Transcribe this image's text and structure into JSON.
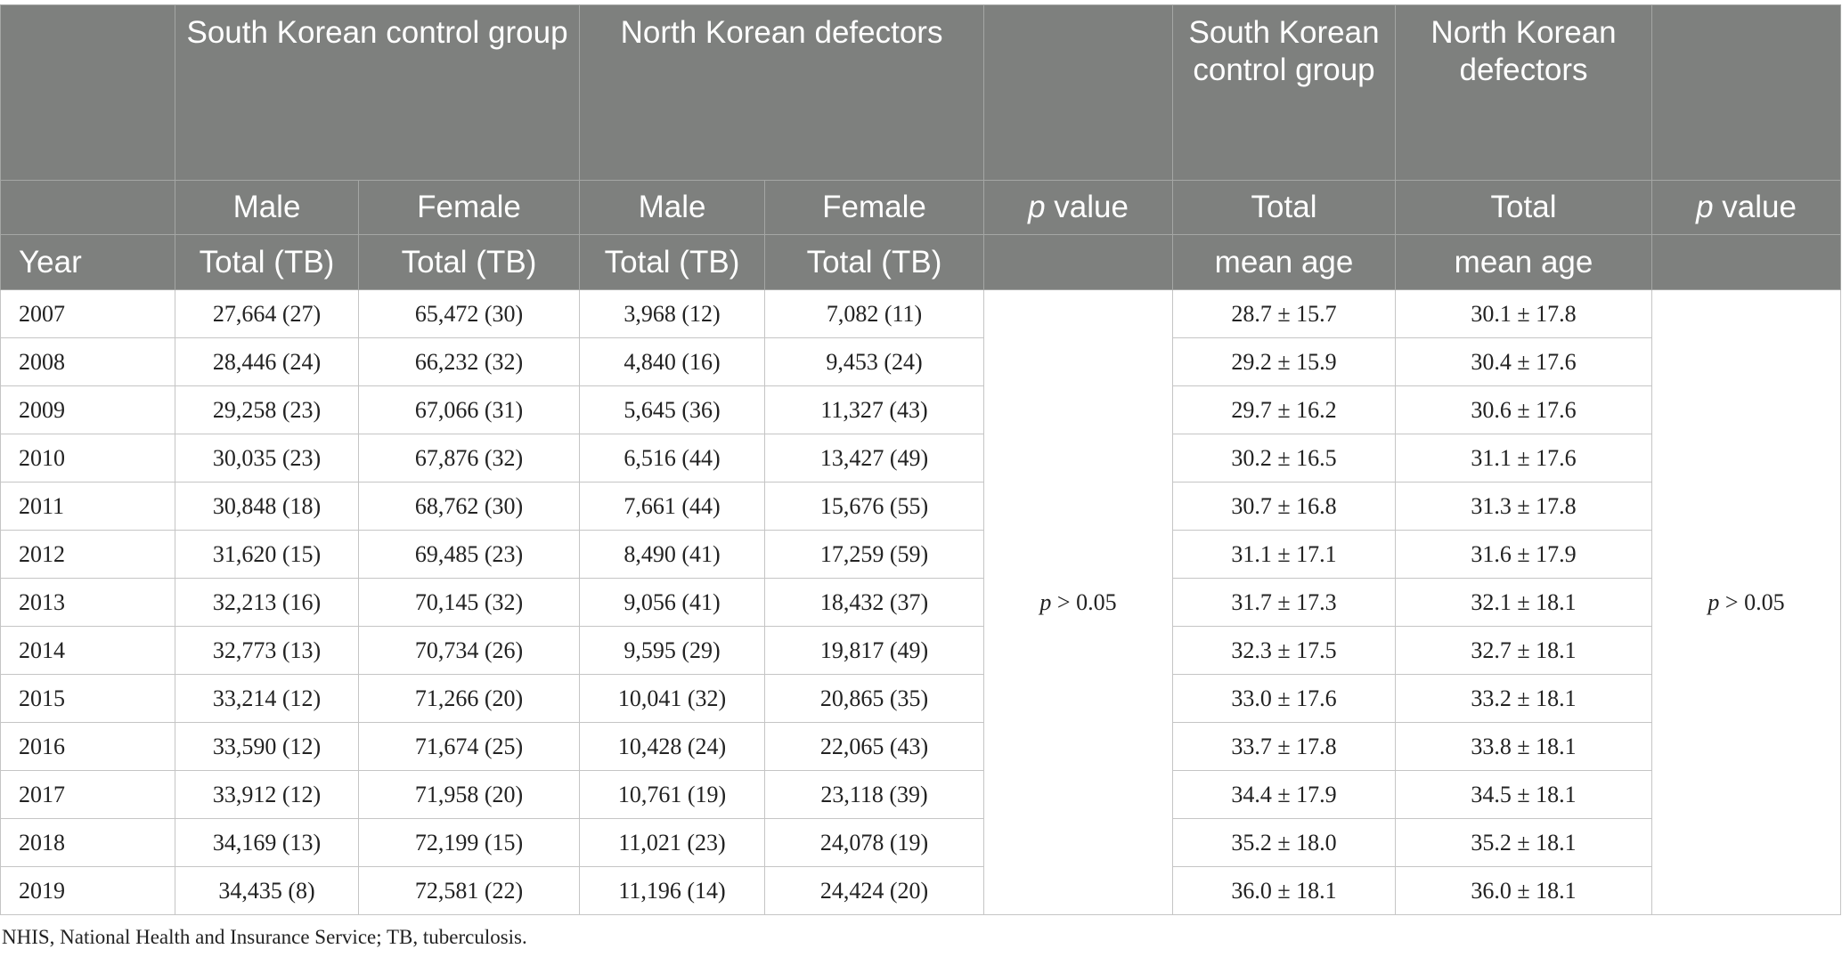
{
  "header": {
    "group_sk": "South Korean control group",
    "group_nk": "North Korean defectors",
    "group_sk_age": "South Korean control group",
    "group_nk_age": "North Korean defectors",
    "male": "Male",
    "female": "Female",
    "p_letter": "p",
    "p_word": "value",
    "total": "Total",
    "year": "Year",
    "total_tb": "Total (TB)",
    "mean_age": "mean age"
  },
  "p_merged": {
    "counts": "p > 0.05",
    "age": "p > 0.05"
  },
  "rows": [
    {
      "year": "2007",
      "sk_male": "27,664 (27)",
      "sk_female": "65,472 (30)",
      "nk_male": "3,968 (12)",
      "nk_female": "7,082 (11)",
      "sk_age": "28.7 ± 15.7",
      "nk_age": "30.1 ± 17.8"
    },
    {
      "year": "2008",
      "sk_male": "28,446 (24)",
      "sk_female": "66,232 (32)",
      "nk_male": "4,840 (16)",
      "nk_female": "9,453 (24)",
      "sk_age": "29.2 ± 15.9",
      "nk_age": "30.4 ± 17.6"
    },
    {
      "year": "2009",
      "sk_male": "29,258 (23)",
      "sk_female": "67,066 (31)",
      "nk_male": "5,645 (36)",
      "nk_female": "11,327 (43)",
      "sk_age": "29.7 ± 16.2",
      "nk_age": "30.6 ± 17.6"
    },
    {
      "year": "2010",
      "sk_male": "30,035 (23)",
      "sk_female": "67,876 (32)",
      "nk_male": "6,516 (44)",
      "nk_female": "13,427 (49)",
      "sk_age": "30.2 ± 16.5",
      "nk_age": "31.1 ± 17.6"
    },
    {
      "year": "2011",
      "sk_male": "30,848 (18)",
      "sk_female": "68,762 (30)",
      "nk_male": "7,661 (44)",
      "nk_female": "15,676 (55)",
      "sk_age": "30.7 ± 16.8",
      "nk_age": "31.3 ± 17.8"
    },
    {
      "year": "2012",
      "sk_male": "31,620 (15)",
      "sk_female": "69,485 (23)",
      "nk_male": "8,490 (41)",
      "nk_female": "17,259 (59)",
      "sk_age": "31.1 ± 17.1",
      "nk_age": "31.6 ± 17.9"
    },
    {
      "year": "2013",
      "sk_male": "32,213 (16)",
      "sk_female": "70,145 (32)",
      "nk_male": "9,056 (41)",
      "nk_female": "18,432 (37)",
      "sk_age": "31.7 ± 17.3",
      "nk_age": "32.1 ± 18.1"
    },
    {
      "year": "2014",
      "sk_male": "32,773 (13)",
      "sk_female": "70,734 (26)",
      "nk_male": "9,595 (29)",
      "nk_female": "19,817 (49)",
      "sk_age": "32.3 ± 17.5",
      "nk_age": "32.7 ± 18.1"
    },
    {
      "year": "2015",
      "sk_male": "33,214 (12)",
      "sk_female": "71,266 (20)",
      "nk_male": "10,041 (32)",
      "nk_female": "20,865 (35)",
      "sk_age": "33.0 ± 17.6",
      "nk_age": "33.2 ± 18.1"
    },
    {
      "year": "2016",
      "sk_male": "33,590 (12)",
      "sk_female": "71,674 (25)",
      "nk_male": "10,428 (24)",
      "nk_female": "22,065 (43)",
      "sk_age": "33.7 ± 17.8",
      "nk_age": "33.8 ± 18.1"
    },
    {
      "year": "2017",
      "sk_male": "33,912 (12)",
      "sk_female": "71,958 (20)",
      "nk_male": "10,761 (19)",
      "nk_female": "23,118 (39)",
      "sk_age": "34.4 ± 17.9",
      "nk_age": "34.5 ± 18.1"
    },
    {
      "year": "2018",
      "sk_male": "34,169 (13)",
      "sk_female": "72,199 (15)",
      "nk_male": "11,021 (23)",
      "nk_female": "24,078 (19)",
      "sk_age": "35.2 ± 18.0",
      "nk_age": "35.2 ± 18.1"
    },
    {
      "year": "2019",
      "sk_male": "34,435 (8)",
      "sk_female": "72,581 (22)",
      "nk_male": "11,196 (14)",
      "nk_female": "24,424 (20)",
      "sk_age": "36.0 ± 18.1",
      "nk_age": "36.0 ± 18.1"
    }
  ],
  "footnote": "NHIS, National Health and Insurance Service; TB, tuberculosis."
}
